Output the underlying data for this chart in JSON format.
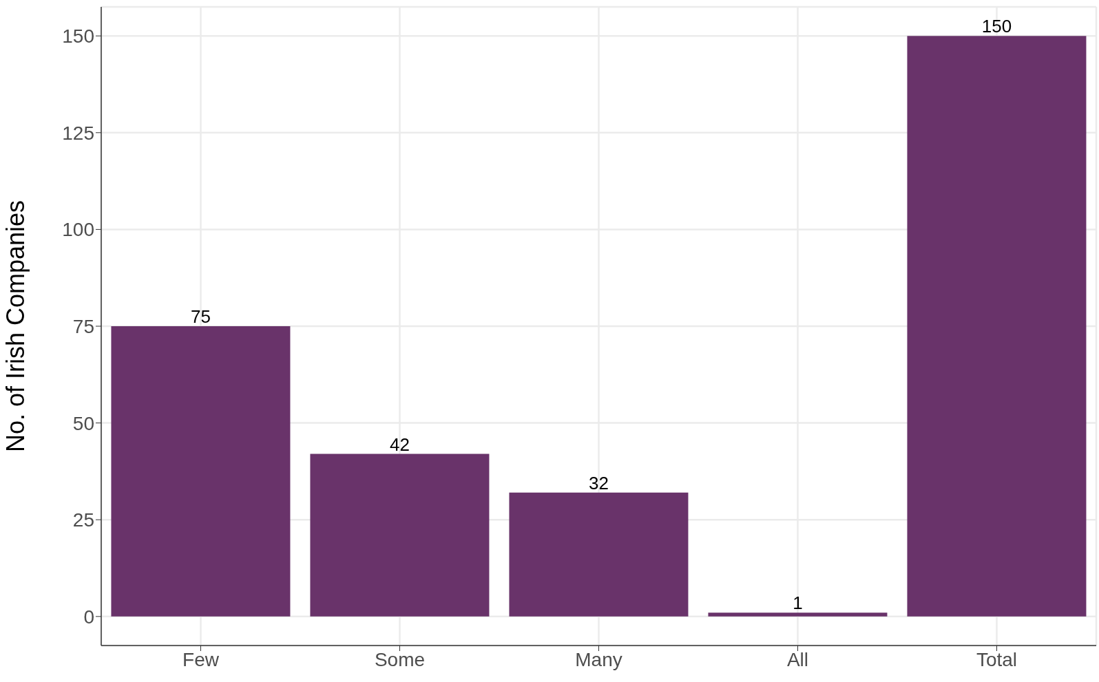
{
  "chart_data": {
    "type": "bar",
    "ylabel": "No. of Irish Companies",
    "categories": [
      "Few",
      "Some",
      "Many",
      "All",
      "Total"
    ],
    "values": [
      75,
      42,
      32,
      1,
      150
    ],
    "color": "#69336a",
    "ylim": [
      -7.5,
      157.5
    ],
    "yticks": [
      0,
      25,
      50,
      75,
      100,
      125,
      150
    ],
    "grid": true,
    "data_labels": true
  }
}
